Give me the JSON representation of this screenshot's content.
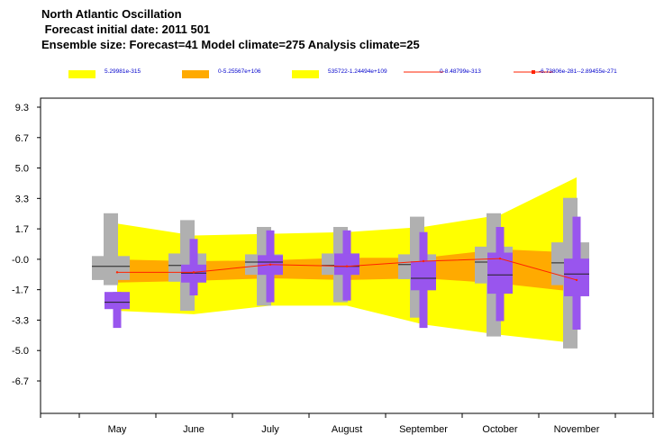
{
  "chart_data": {
    "type": "box",
    "title_lines": [
      "North Atlantic Oscillation",
      " Forecast initial date: 2011 501",
      "Ensemble size: Forecast=41 Model climate=275 Analysis climate=25"
    ],
    "legend": [
      {
        "label": "5.29981e-315",
        "kind": "swatch",
        "color": "#ffff00"
      },
      {
        "label": "0-5.25567e+106",
        "kind": "swatch",
        "color": "#ffaa00"
      },
      {
        "label": "535722-1.24494e+109",
        "kind": "swatch",
        "color": "#ffff00"
      },
      {
        "label": "0-8.48799e-313",
        "kind": "line",
        "color": "#ff2200"
      },
      {
        "label": "-6.73806e-281--2.89455e-271",
        "kind": "line-marker",
        "color": "#ff2200"
      }
    ],
    "categories": [
      "May",
      "June",
      "July",
      "August",
      "September",
      "October",
      "November"
    ],
    "y_ticks": [
      "9.3",
      "6.7",
      "5.0",
      "3.3",
      "1.7",
      "-0.0",
      "-1.7",
      "-3.3",
      "-5.0",
      "-6.7"
    ],
    "ylim": [
      -8.2,
      9.3
    ],
    "outer_band": {
      "upper": [
        2.5,
        1.8,
        1.9,
        2.0,
        2.3,
        3.0,
        5.2
      ],
      "lower": [
        -2.6,
        -2.8,
        -2.3,
        -2.3,
        -3.4,
        -4.0,
        -4.5
      ]
    },
    "inner_band": {
      "upper": [
        0.4,
        0.3,
        0.35,
        0.5,
        0.5,
        1.0,
        0.8
      ],
      "lower": [
        -0.95,
        -0.85,
        -0.7,
        -0.8,
        -0.7,
        -1.0,
        -1.5
      ]
    },
    "analysis_line": [
      -0.35,
      -0.35,
      0.1,
      0.0,
      0.3,
      0.45,
      -0.8
    ],
    "model_climate": [
      {
        "whisker_low": -1.1,
        "q1": -0.8,
        "median": 0.0,
        "q3": 0.6,
        "whisker_high": 3.1
      },
      {
        "whisker_low": -2.6,
        "q1": -0.9,
        "median": 0.05,
        "q3": 0.75,
        "whisker_high": 2.7
      },
      {
        "whisker_low": -2.3,
        "q1": -0.5,
        "median": 0.25,
        "q3": 0.7,
        "whisker_high": 2.3
      },
      {
        "whisker_low": -2.1,
        "q1": -0.5,
        "median": 0.05,
        "q3": 0.75,
        "whisker_high": 2.3
      },
      {
        "whisker_low": -3.0,
        "q1": -0.75,
        "median": 0.1,
        "q3": 0.7,
        "whisker_high": 2.9
      },
      {
        "whisker_low": -4.1,
        "q1": -1.0,
        "median": 0.25,
        "q3": 1.15,
        "whisker_high": 3.1
      },
      {
        "whisker_low": -4.8,
        "q1": -1.1,
        "median": 0.2,
        "q3": 1.4,
        "whisker_high": 4.0
      }
    ],
    "forecast": [
      {
        "whisker_low": -3.6,
        "q1": -2.5,
        "median": -2.1,
        "q3": -1.5,
        "whisker_high": -1.5
      },
      {
        "whisker_low": -1.7,
        "q1": -0.95,
        "median": -0.4,
        "q3": 0.1,
        "whisker_high": 1.6
      },
      {
        "whisker_low": -2.1,
        "q1": -0.5,
        "median": 0.25,
        "q3": 0.65,
        "whisker_high": 2.1
      },
      {
        "whisker_low": -2.0,
        "q1": -0.5,
        "median": 0.0,
        "q3": 0.75,
        "whisker_high": 2.1
      },
      {
        "whisker_low": -3.6,
        "q1": -1.4,
        "median": -0.7,
        "q3": 0.3,
        "whisker_high": 2.0
      },
      {
        "whisker_low": -3.2,
        "q1": -1.6,
        "median": -0.5,
        "q3": 0.8,
        "whisker_high": 2.3
      },
      {
        "whisker_low": -3.7,
        "q1": -1.75,
        "median": -0.45,
        "q3": 0.45,
        "whisker_high": 2.9
      }
    ],
    "colors": {
      "outer_band": "#ffff00",
      "inner_band": "#ffaa00",
      "model_climate_box": "#b0b0b0",
      "forecast_box": "#9955ee",
      "analysis_line": "#ff2200",
      "median_line": "#222222"
    },
    "grid": false
  }
}
